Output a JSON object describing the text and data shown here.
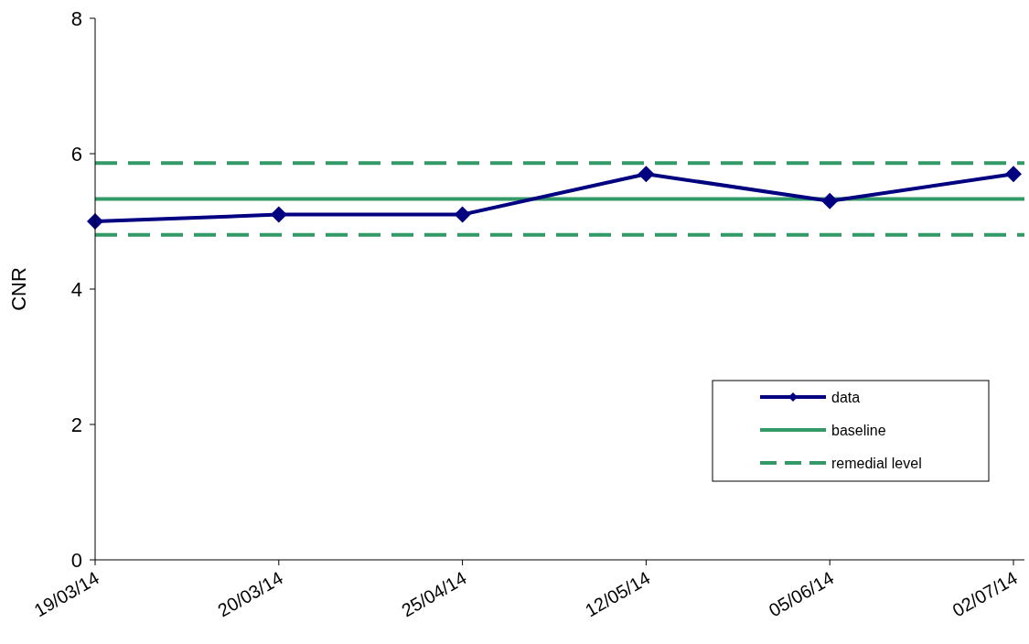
{
  "chart_data": {
    "type": "line",
    "ylabel": "CNR",
    "categories": [
      "19/03/14",
      "20/03/14",
      "25/04/14",
      "12/05/14",
      "05/06/14",
      "02/07/14"
    ],
    "series": [
      {
        "name": "data",
        "color": "#000080",
        "values": [
          5.0,
          5.1,
          5.1,
          5.7,
          5.3,
          5.7
        ]
      }
    ],
    "ylim": [
      0,
      8
    ],
    "yticks": [
      0,
      2,
      4,
      6,
      8
    ],
    "grid": false,
    "marker": "diamond",
    "line_style": "solid",
    "legend": "bottom right",
    "ref_lines": [
      {
        "axis": "y",
        "value": 5.33,
        "label": "baseline",
        "color": "#339966",
        "line_style": "solid"
      },
      {
        "axis": "y",
        "value": 5.86,
        "label": "remedial level",
        "color": "#339966",
        "line_style": "dashed"
      },
      {
        "axis": "y",
        "value": 4.8,
        "color": "#339966",
        "line_style": "dashed"
      }
    ]
  }
}
